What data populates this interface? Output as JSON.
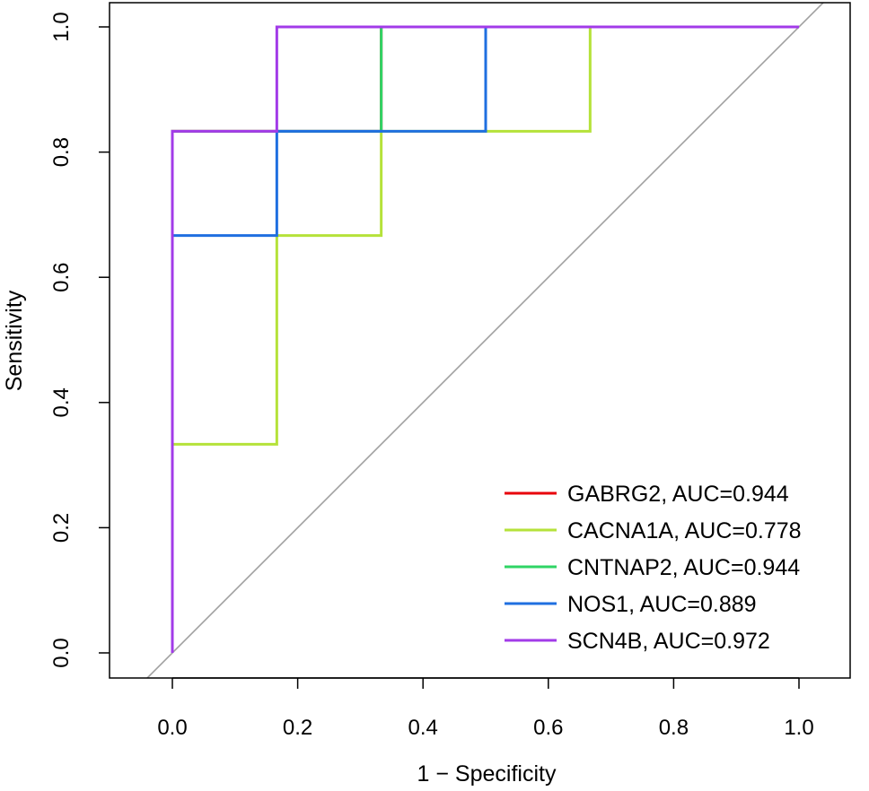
{
  "chart_data": {
    "type": "line",
    "title": "",
    "xlabel": "1 − Specificity",
    "ylabel": "Sensitivity",
    "xlim": [
      -0.1,
      1.05
    ],
    "ylim": [
      -0.04,
      1.04
    ],
    "xticks": [
      0.0,
      0.2,
      0.4,
      0.6,
      0.8,
      1.0
    ],
    "xtick_labels": [
      "0.0",
      "0.2",
      "0.4",
      "0.6",
      "0.8",
      "1.0"
    ],
    "yticks": [
      0.0,
      0.2,
      0.4,
      0.6,
      0.8,
      1.0
    ],
    "ytick_labels": [
      "0.0",
      "0.2",
      "0.4",
      "0.6",
      "0.8",
      "1.0"
    ],
    "grid": false,
    "legend_position": "bottom-right",
    "reference_line": {
      "type": "diagonal",
      "color": "#a0a0a0"
    },
    "series": [
      {
        "name": "GABRG2, AUC=0.944",
        "color": "#e8000b",
        "x": [
          0,
          0,
          0.1667,
          0.1667,
          0.3333,
          0.3333,
          1.0
        ],
        "y": [
          0,
          0.8333,
          0.8333,
          0.8333,
          0.8333,
          1.0,
          1.0
        ]
      },
      {
        "name": "CACNA1A, AUC=0.778",
        "color": "#b5e23a",
        "x": [
          0,
          0,
          0.1667,
          0.1667,
          0.3333,
          0.3333,
          0.6667,
          0.6667,
          1.0
        ],
        "y": [
          0,
          0.3333,
          0.3333,
          0.6667,
          0.6667,
          0.8333,
          0.8333,
          1.0,
          1.0
        ]
      },
      {
        "name": "CNTNAP2, AUC=0.944",
        "color": "#2fd465",
        "x": [
          0,
          0,
          0.1667,
          0.1667,
          0.3333,
          0.3333,
          1.0
        ],
        "y": [
          0,
          0.8333,
          0.8333,
          0.8333,
          0.8333,
          1.0,
          1.0
        ]
      },
      {
        "name": "NOS1, AUC=0.889",
        "color": "#1f6fe0",
        "x": [
          0,
          0,
          0.1667,
          0.1667,
          0.5,
          0.5,
          1.0
        ],
        "y": [
          0,
          0.6667,
          0.6667,
          0.8333,
          0.8333,
          1.0,
          1.0
        ]
      },
      {
        "name": "SCN4B, AUC=0.972",
        "color": "#a23be8",
        "x": [
          0,
          0,
          0.1667,
          0.1667,
          1.0
        ],
        "y": [
          0,
          0.8333,
          0.8333,
          1.0,
          1.0
        ]
      }
    ]
  }
}
